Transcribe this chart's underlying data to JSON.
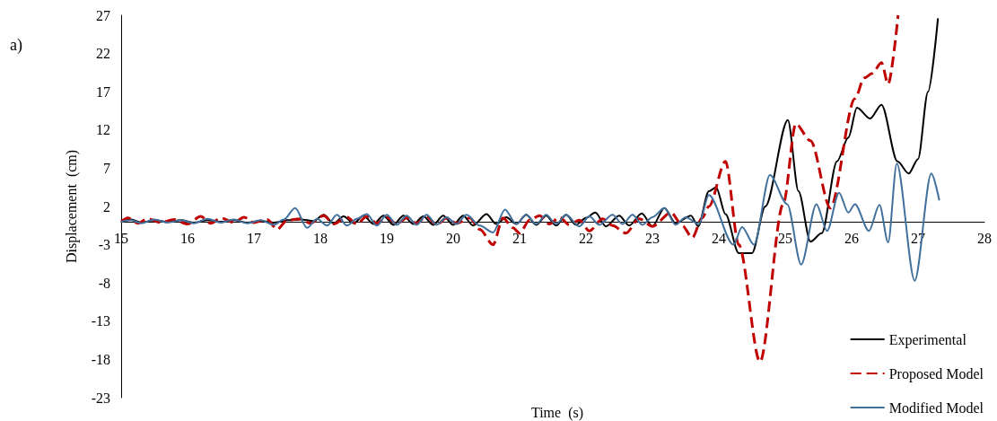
{
  "chart_data": {
    "type": "line",
    "xlabel": "Time  (s)",
    "ylabel": "Displacement  (cm)",
    "annotations": [
      "a)"
    ],
    "xlim": [
      15,
      28
    ],
    "xticks": [
      15,
      16,
      17,
      18,
      19,
      20,
      21,
      22,
      23,
      24,
      25,
      26,
      27,
      28
    ],
    "ylim": [
      -23,
      27
    ],
    "yticks": [
      -23,
      -18,
      -13,
      -8,
      -3,
      2,
      7,
      12,
      17,
      22,
      27
    ],
    "grid": false,
    "legend": "bottom right",
    "marker": "none",
    "series": [
      {
        "name": "Experimental",
        "color": "#000000",
        "line_style": "solid",
        "x": [
          15,
          15.15,
          15.3,
          15.5,
          15.7,
          15.9,
          16.1,
          16.3,
          16.5,
          16.7,
          16.9,
          17.1,
          17.3,
          17.5,
          17.7,
          17.9,
          18.05,
          18.2,
          18.35,
          18.5,
          18.65,
          18.8,
          18.95,
          19.1,
          19.25,
          19.4,
          19.55,
          19.7,
          19.85,
          20.0,
          20.15,
          20.3,
          20.5,
          20.65,
          20.8,
          20.95,
          21.1,
          21.25,
          21.4,
          21.55,
          21.7,
          21.85,
          22.0,
          22.14,
          22.3,
          22.5,
          22.65,
          22.84,
          23.0,
          23.18,
          23.35,
          23.58,
          23.69,
          23.85,
          23.96,
          24.1,
          24.3,
          24.5,
          24.7,
          25.04,
          25.2,
          25.38,
          25.55,
          25.78,
          25.95,
          26.08,
          26.28,
          26.45,
          26.69,
          26.86,
          27.0,
          27.15,
          27.3
        ],
        "values": [
          0,
          0.3,
          -0.1,
          0.2,
          0,
          0.2,
          -0.1,
          0.2,
          0,
          0.2,
          -0.1,
          0.1,
          -0.1,
          0.2,
          0.3,
          0.1,
          0.9,
          -0.2,
          0.7,
          -0.2,
          0.8,
          -0.3,
          0.8,
          -0.4,
          0.8,
          -0.3,
          0.7,
          -0.4,
          0.8,
          -0.4,
          0.8,
          -0.5,
          1.0,
          -0.3,
          0.6,
          -0.3,
          0.9,
          -0.4,
          0.8,
          -0.5,
          0.9,
          -0.4,
          0.5,
          1.2,
          -0.6,
          0.8,
          -0.5,
          1.1,
          -0.6,
          1.8,
          -0.2,
          0.8,
          -0.6,
          4.0,
          4.5,
          1,
          -4.1,
          -4.1,
          2,
          13.3,
          4,
          -2.6,
          -1.5,
          7.9,
          11,
          14.9,
          13.5,
          15.3,
          7.9,
          6.3,
          8.2,
          17,
          26.6
        ]
      },
      {
        "name": "Proposed Model",
        "color": "#c00000",
        "line_style": "dashed",
        "x": [
          15,
          15.1,
          15.25,
          15.4,
          15.6,
          15.8,
          16.0,
          16.2,
          16.35,
          16.5,
          16.7,
          16.85,
          17.0,
          17.2,
          17.35,
          17.5,
          17.7,
          17.85,
          18.05,
          18.2,
          18.4,
          18.55,
          18.7,
          18.85,
          19.0,
          19.15,
          19.3,
          19.45,
          19.6,
          19.75,
          19.9,
          20.05,
          20.25,
          20.4,
          20.6,
          20.75,
          20.9,
          21.0,
          21.15,
          21.3,
          21.45,
          21.6,
          21.75,
          21.9,
          22.05,
          22.25,
          22.4,
          22.6,
          22.8,
          23.0,
          23.28,
          23.45,
          23.6,
          23.75,
          23.85,
          24.1,
          24.3,
          24.62,
          24.97,
          25.16,
          25.38,
          25.68,
          26.05,
          26.19,
          26.31,
          26.45,
          26.55,
          26.7
        ],
        "values": [
          0,
          0.5,
          -0.2,
          0.4,
          -0.1,
          0.3,
          -0.3,
          0.7,
          -0.2,
          0.5,
          -0.1,
          0.6,
          -0.1,
          0.3,
          -1.0,
          0.2,
          0.4,
          -0.2,
          0.8,
          -0.3,
          0.6,
          -0.3,
          0.7,
          -0.2,
          0.6,
          -0.3,
          0.5,
          -0.2,
          0.7,
          -0.4,
          0.5,
          -0.2,
          0.5,
          -1,
          -3.0,
          0.5,
          -0.8,
          -1.5,
          0.2,
          0.8,
          -0.3,
          0.6,
          -0.4,
          0.2,
          -1.2,
          0.4,
          -0.5,
          -1.5,
          0.4,
          -0.6,
          1.2,
          -0.5,
          -2.1,
          0.5,
          2,
          7.9,
          -3,
          -18.3,
          2.3,
          12.8,
          10.6,
          1.8,
          16.1,
          18.8,
          19.4,
          20.8,
          18,
          27
        ]
      },
      {
        "name": "Modified Model",
        "color": "#41709c",
        "line_style": "solid",
        "x": [
          15,
          15.15,
          15.3,
          15.5,
          15.7,
          15.9,
          16.1,
          16.3,
          16.5,
          16.7,
          16.9,
          17.1,
          17.3,
          17.45,
          17.62,
          17.8,
          17.95,
          18.1,
          18.25,
          18.4,
          18.55,
          18.7,
          18.85,
          19.0,
          19.15,
          19.3,
          19.45,
          19.6,
          19.75,
          19.9,
          20.05,
          20.2,
          20.4,
          20.6,
          20.78,
          20.95,
          21.1,
          21.25,
          21.4,
          21.55,
          21.7,
          21.9,
          22.05,
          22.2,
          22.4,
          22.55,
          22.7,
          22.85,
          23.0,
          23.18,
          23.35,
          23.5,
          23.7,
          23.85,
          24.22,
          24.35,
          24.53,
          24.77,
          25.03,
          25.24,
          25.47,
          25.63,
          25.81,
          25.95,
          26.05,
          26.26,
          26.42,
          26.55,
          26.68,
          26.95,
          27.2,
          27.32
        ],
        "values": [
          0,
          0.2,
          -0.2,
          0.3,
          -0.1,
          0.2,
          -0.2,
          0.4,
          -0.1,
          0.3,
          -0.2,
          0.2,
          -0.4,
          0.3,
          1.8,
          -0.8,
          0.4,
          -0.5,
          0.9,
          -0.5,
          0.4,
          1.0,
          -0.5,
          0.9,
          -0.4,
          0.8,
          -0.4,
          0.9,
          -0.4,
          0.6,
          -0.3,
          0.9,
          -0.5,
          -1.4,
          1.6,
          -0.3,
          0.9,
          -0.3,
          0.9,
          -0.3,
          0.9,
          -0.6,
          0.7,
          -0.4,
          0.9,
          -0.3,
          0.9,
          -0.4,
          0.6,
          1.8,
          -0.4,
          0.6,
          -0.3,
          3.5,
          -3,
          -0.7,
          -3,
          6.1,
          2.3,
          -5.6,
          2.3,
          -1.2,
          3.8,
          1.2,
          2.3,
          -1.2,
          2.2,
          -2.7,
          7.6,
          -7.7,
          6.3,
          2.8
        ]
      }
    ]
  }
}
